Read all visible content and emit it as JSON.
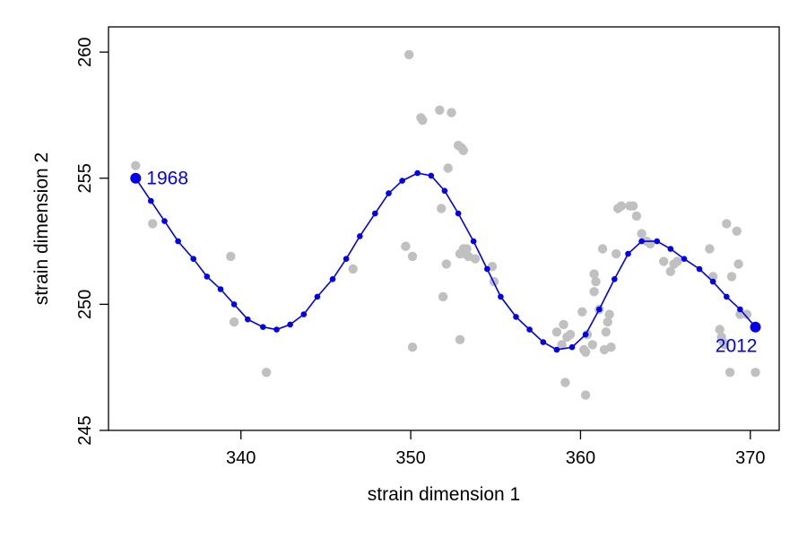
{
  "chart_data": {
    "type": "scatter",
    "title": "",
    "xlabel": "strain dimension 1",
    "ylabel": "strain dimension 2",
    "xlim": [
      332.2,
      371.7
    ],
    "ylim": [
      245.0,
      261.0
    ],
    "xticks": [
      340,
      350,
      360,
      370
    ],
    "yticks": [
      245,
      250,
      255,
      260
    ],
    "grid": false,
    "legend": "none",
    "colors": {
      "scatter": "#c0c0c0",
      "trend": "#0000ee"
    },
    "scatter_points": [
      [
        333.8,
        255.5
      ],
      [
        334.8,
        253.2
      ],
      [
        339.4,
        251.9
      ],
      [
        339.6,
        249.3
      ],
      [
        341.5,
        247.3
      ],
      [
        346.6,
        251.4
      ],
      [
        349.7,
        252.3
      ],
      [
        349.9,
        259.9
      ],
      [
        350.1,
        251.9
      ],
      [
        350.1,
        248.3
      ],
      [
        350.6,
        257.4
      ],
      [
        350.7,
        257.3
      ],
      [
        351.7,
        257.7
      ],
      [
        351.8,
        253.8
      ],
      [
        351.9,
        250.3
      ],
      [
        352.1,
        251.6
      ],
      [
        352.2,
        255.4
      ],
      [
        352.4,
        257.6
      ],
      [
        352.8,
        256.3
      ],
      [
        352.9,
        248.6
      ],
      [
        352.9,
        252.0
      ],
      [
        353.0,
        256.2
      ],
      [
        353.1,
        256.1
      ],
      [
        353.1,
        252.2
      ],
      [
        353.2,
        252.0
      ],
      [
        353.3,
        252.2
      ],
      [
        353.4,
        251.9
      ],
      [
        353.8,
        251.8
      ],
      [
        354.8,
        251.5
      ],
      [
        354.9,
        250.9
      ],
      [
        358.6,
        248.9
      ],
      [
        358.9,
        248.4
      ],
      [
        359.0,
        249.2
      ],
      [
        359.1,
        246.9
      ],
      [
        359.2,
        248.7
      ],
      [
        359.4,
        248.8
      ],
      [
        360.1,
        249.7
      ],
      [
        360.2,
        248.2
      ],
      [
        360.3,
        248.1
      ],
      [
        360.3,
        246.4
      ],
      [
        360.4,
        248.8
      ],
      [
        360.7,
        248.4
      ],
      [
        360.8,
        251.2
      ],
      [
        360.8,
        250.5
      ],
      [
        360.9,
        250.9
      ],
      [
        361.1,
        249.8
      ],
      [
        361.3,
        252.2
      ],
      [
        361.4,
        248.2
      ],
      [
        361.5,
        248.9
      ],
      [
        361.6,
        249.3
      ],
      [
        361.7,
        249.6
      ],
      [
        361.8,
        248.3
      ],
      [
        362.1,
        252.0
      ],
      [
        362.2,
        253.8
      ],
      [
        362.4,
        253.9
      ],
      [
        362.9,
        253.9
      ],
      [
        363.1,
        253.9
      ],
      [
        363.3,
        253.5
      ],
      [
        363.6,
        252.8
      ],
      [
        363.9,
        252.5
      ],
      [
        364.1,
        252.4
      ],
      [
        364.9,
        251.7
      ],
      [
        365.3,
        251.3
      ],
      [
        365.5,
        251.6
      ],
      [
        365.7,
        251.7
      ],
      [
        367.6,
        252.2
      ],
      [
        367.8,
        251.1
      ],
      [
        368.2,
        249.0
      ],
      [
        368.3,
        248.7
      ],
      [
        368.4,
        248.5
      ],
      [
        368.5,
        248.4
      ],
      [
        368.6,
        253.2
      ],
      [
        368.8,
        247.3
      ],
      [
        368.9,
        251.1
      ],
      [
        369.2,
        252.9
      ],
      [
        369.3,
        251.6
      ],
      [
        369.4,
        249.6
      ],
      [
        369.8,
        249.6
      ],
      [
        370.3,
        247.3
      ]
    ],
    "trend_points": [
      [
        333.8,
        255.0
      ],
      [
        334.7,
        254.1
      ],
      [
        335.5,
        253.3
      ],
      [
        336.3,
        252.5
      ],
      [
        337.2,
        251.8
      ],
      [
        338.0,
        251.1
      ],
      [
        338.8,
        250.6
      ],
      [
        339.6,
        250.0
      ],
      [
        340.4,
        249.4
      ],
      [
        341.3,
        249.1
      ],
      [
        342.1,
        249.0
      ],
      [
        342.9,
        249.2
      ],
      [
        343.7,
        249.6
      ],
      [
        344.5,
        250.3
      ],
      [
        345.4,
        251.0
      ],
      [
        346.2,
        251.8
      ],
      [
        347.0,
        252.7
      ],
      [
        347.9,
        253.6
      ],
      [
        348.7,
        254.4
      ],
      [
        349.5,
        254.9
      ],
      [
        350.4,
        255.2
      ],
      [
        351.2,
        255.1
      ],
      [
        352.0,
        254.5
      ],
      [
        352.8,
        253.6
      ],
      [
        353.7,
        252.5
      ],
      [
        354.5,
        251.4
      ],
      [
        355.3,
        250.3
      ],
      [
        356.2,
        249.5
      ],
      [
        357.0,
        249.0
      ],
      [
        357.8,
        248.5
      ],
      [
        358.6,
        248.2
      ],
      [
        359.5,
        248.3
      ],
      [
        360.3,
        248.8
      ],
      [
        361.1,
        249.8
      ],
      [
        362.0,
        251.0
      ],
      [
        362.8,
        252.0
      ],
      [
        363.6,
        252.5
      ],
      [
        364.5,
        252.5
      ],
      [
        365.3,
        252.2
      ],
      [
        366.1,
        251.8
      ],
      [
        367.0,
        251.4
      ],
      [
        367.8,
        250.9
      ],
      [
        368.6,
        250.3
      ],
      [
        369.4,
        249.8
      ],
      [
        370.3,
        249.1
      ]
    ],
    "annotations": [
      {
        "text": "1968",
        "x": 333.8,
        "y": 255.0,
        "position": "right"
      },
      {
        "text": "2012",
        "x": 370.3,
        "y": 249.1,
        "position": "below-left"
      }
    ]
  }
}
